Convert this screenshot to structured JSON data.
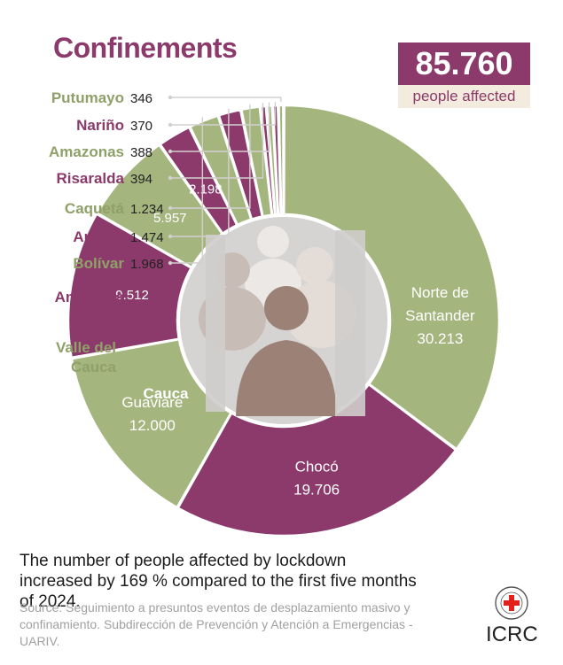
{
  "title": "Confinements",
  "total": {
    "value": "85.760",
    "label": "people affected"
  },
  "note": "The number of people affected by lockdown increased by 169 % compared to the first five months of 2024.",
  "source": "Source: Seguimiento a presuntos eventos de desplazamiento masivo y confinamiento. Subdirección de Prevención y Atención a Emergencias - UARIV.",
  "logo": {
    "text": "ICRC",
    "icon": "red-cross-emblem-icon"
  },
  "colors": {
    "green": "#a5b57e",
    "purple": "#8b3a6b",
    "green_text": "#8fa068",
    "gray": "#d2d0cf",
    "line": "#d2d0cf"
  },
  "chart_data": {
    "type": "pie",
    "variant": "donut",
    "title": "Confinements",
    "categories": [
      "Norte de Santander",
      "Chocó",
      "Guaviare",
      "Cauca",
      "Valle del Cauca",
      "Antioquia",
      "Bolívar",
      "Arauca",
      "Caquetá",
      "Risaralda",
      "Amazonas",
      "Nariño",
      "Putumayo"
    ],
    "values": [
      30213,
      19706,
      12000,
      9512,
      5957,
      2198,
      1968,
      1474,
      1234,
      394,
      388,
      370,
      346
    ],
    "value_labels": [
      "30.213",
      "19.706",
      "12.000",
      "9.512",
      "5.957",
      "2.198",
      "1.968",
      "1.474",
      "1.234",
      "394",
      "388",
      "370",
      "346"
    ],
    "name_lines": [
      [
        "Norte de",
        "Santander"
      ],
      [
        "Chocó"
      ],
      [
        "Guaviare"
      ],
      [
        "Cauca"
      ],
      [
        "Valle del",
        "Cauca"
      ],
      [
        "Antioquia"
      ],
      [
        "Bolívar"
      ],
      [
        "Arauca"
      ],
      [
        "Caquetá"
      ],
      [
        "Risaralda"
      ],
      [
        "Amazonas"
      ],
      [
        "Nariño"
      ],
      [
        "Putumayo"
      ]
    ],
    "slice_colors": [
      "green",
      "purple",
      "green",
      "purple",
      "green",
      "purple",
      "green",
      "purple",
      "green",
      "purple",
      "green",
      "purple",
      "green"
    ]
  }
}
